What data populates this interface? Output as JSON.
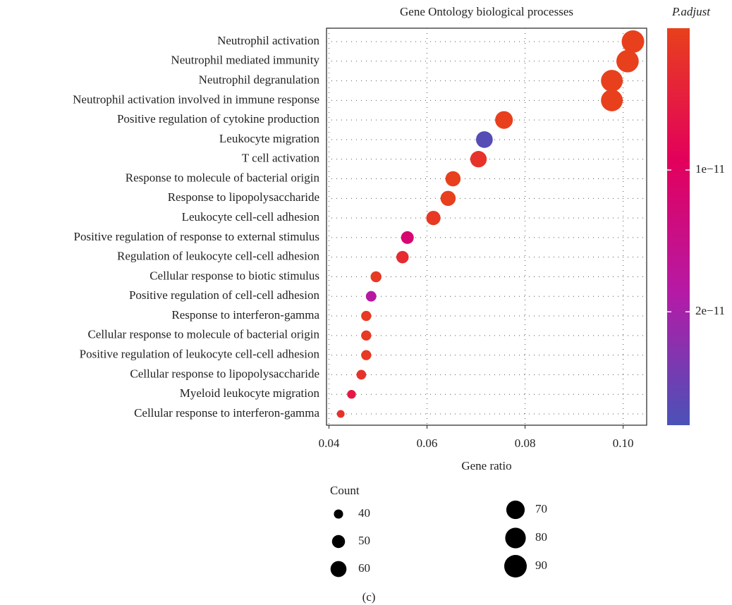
{
  "chart_data": {
    "type": "dot",
    "title": "Gene Ontology biological processes",
    "x_label": "Gene ratio",
    "categories": [
      "Neutrophil activation",
      "Neutrophil mediated immunity",
      "Neutrophil degranulation",
      "Neutrophil activation involved in immune response",
      "Positive regulation of cytokine production",
      "Leukocyte migration",
      "T cell activation",
      "Response to molecule of bacterial origin",
      "Response to lipopolysaccharide",
      "Leukocyte cell-cell adhesion",
      "Positive regulation of response to external stimulus",
      "Regulation of leukocyte cell-cell adhesion",
      "Cellular response to biotic stimulus",
      "Positive regulation of cell-cell adhesion",
      "Response to interferon-gamma",
      "Cellular response to molecule of bacterial origin",
      "Positive regulation of leukocyte cell-cell adhesion",
      "Cellular response to lipopolysaccharide",
      "Myeloid leukocyte migration",
      "Cellular response to interferon-gamma"
    ],
    "values": [
      0.102,
      0.1009,
      0.0977,
      0.0977,
      0.0757,
      0.0717,
      0.0705,
      0.0653,
      0.0643,
      0.0613,
      0.056,
      0.055,
      0.0496,
      0.0486,
      0.0476,
      0.0476,
      0.0476,
      0.0466,
      0.0446,
      0.0424
    ],
    "counts": [
      90,
      89,
      86,
      86,
      67,
      63,
      62,
      57,
      57,
      54,
      49,
      48,
      44,
      43,
      42,
      42,
      42,
      41,
      39,
      37
    ],
    "p_adjust": [
      1e-14,
      1e-14,
      1e-14,
      1e-14,
      1e-13,
      2.7e-11,
      2e-12,
      1e-13,
      1e-13,
      1e-12,
      1.2e-11,
      3e-12,
      1e-12,
      1.8e-11,
      1e-12,
      1e-12,
      1e-12,
      2e-12,
      6e-12,
      2e-12
    ],
    "xlim": [
      0.0395,
      0.1048
    ],
    "xticks": [
      {
        "value": 0.04,
        "label": "0.04"
      },
      {
        "value": 0.06,
        "label": "0.06"
      },
      {
        "value": 0.08,
        "label": "0.08"
      },
      {
        "value": 0.1,
        "label": "0.10"
      }
    ],
    "grid": true,
    "color_label": "P.adjust",
    "clim": [
      0,
      2.8e-11
    ],
    "cticks": [
      {
        "value": 1e-11,
        "label": "1e−11"
      },
      {
        "value": 2e-11,
        "label": "2e−11"
      }
    ],
    "colorscale": [
      "#e8401c",
      "#e3005c",
      "#b51aa6",
      "#4a52b8"
    ],
    "size_label": "Count",
    "size_ticks": [
      40,
      50,
      60,
      70,
      80,
      90
    ],
    "caption": "(c)"
  }
}
